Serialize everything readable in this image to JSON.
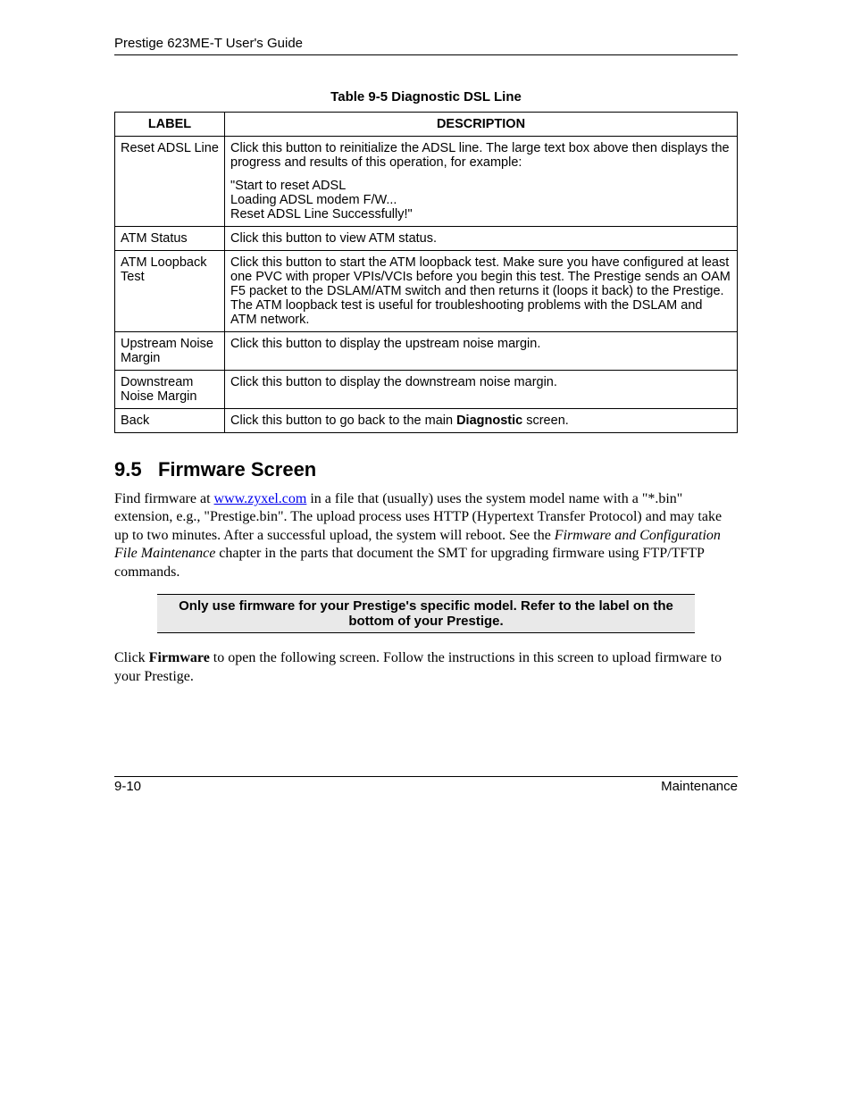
{
  "header": "Prestige 623ME-T User's Guide",
  "table_caption": "Table 9-5 Diagnostic DSL Line",
  "table_headers": {
    "label": "LABEL",
    "description": "DESCRIPTION"
  },
  "rows": {
    "r1": {
      "label": "Reset ADSL Line",
      "p1": "Click this button to reinitialize the ADSL line. The large text box above then displays the progress and results of this operation, for example:",
      "p2a": "\"Start to reset ADSL",
      "p2b": "Loading ADSL modem F/W...",
      "p2c": "Reset ADSL Line Successfully!\""
    },
    "r2": {
      "label": "ATM Status",
      "desc": "Click this button to view ATM status."
    },
    "r3": {
      "label": "ATM Loopback Test",
      "desc": "Click this button to start the ATM loopback test. Make sure you have configured at least one PVC with proper VPIs/VCIs before you begin this test. The Prestige sends an OAM F5 packet to the DSLAM/ATM switch and then returns it (loops it back) to the Prestige. The ATM loopback test is useful for troubleshooting problems with the DSLAM and ATM network."
    },
    "r4": {
      "label": "Upstream Noise Margin",
      "desc": "Click this button to display the upstream noise margin."
    },
    "r5": {
      "label": "Downstream Noise Margin",
      "desc": "Click this button to display the downstream noise margin."
    },
    "r6": {
      "label": "Back",
      "pre": "Click this button to go back to the main ",
      "bold": "Diagnostic",
      "post": " screen."
    }
  },
  "section": {
    "num": "9.5",
    "title": "Firmware Screen"
  },
  "para1": {
    "t1": "Find firmware at ",
    "link": "www.zyxel.com",
    "t2": " in a file that (usually) uses the system model name with a \"*.bin\" extension, e.g., \"Prestige.bin\". The upload process uses HTTP (Hypertext Transfer Protocol) and may take up to two minutes. After a successful upload, the system will reboot.  See the ",
    "italic": "Firmware and Configuration File Maintenance",
    "t3": " chapter in the parts that document the SMT for upgrading firmware using FTP/TFTP commands."
  },
  "callout": "Only use firmware for your Prestige's specific model. Refer to the label on the bottom of your Prestige.",
  "para2": {
    "t1": "Click ",
    "bold": "Firmware",
    "t2": " to open the following screen. Follow the instructions in this screen to upload firmware to your Prestige."
  },
  "footer": {
    "left": "9-10",
    "right": "Maintenance"
  }
}
